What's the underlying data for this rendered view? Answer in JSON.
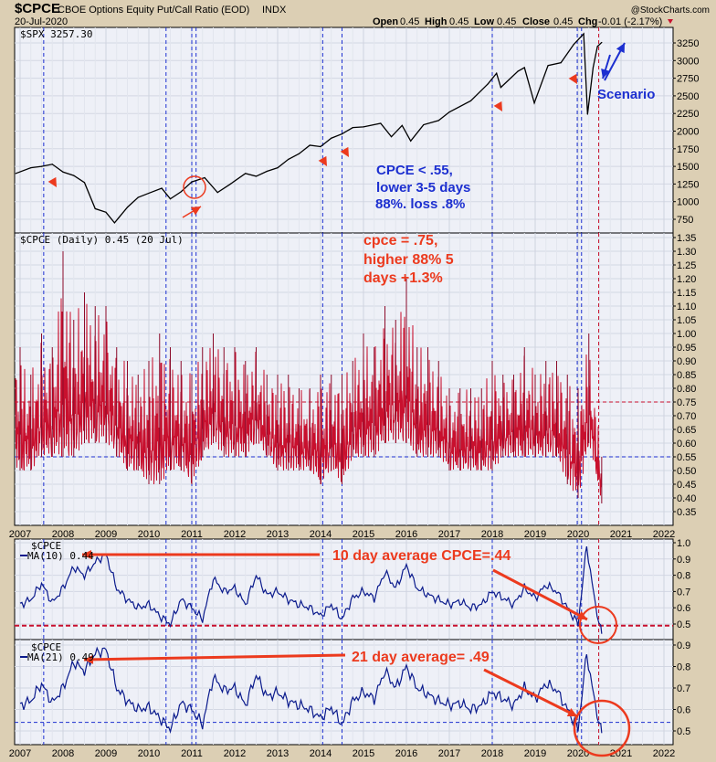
{
  "header": {
    "symbol": "$CPCE",
    "description": "CBOE Options Equity Put/Call Ratio (EOD)",
    "exchange": "INDX",
    "date": "20-Jul-2020",
    "watermark": "@StockCharts.com",
    "open_label": "Open",
    "open": "0.45",
    "high_label": "High",
    "high": "0.45",
    "low_label": "Low",
    "low": "0.45",
    "close_label": "Close",
    "close": "0.45",
    "chg_label": "Chg",
    "chg": "-0.01 (-2.17%)",
    "chg_direction": "down"
  },
  "colors": {
    "spx": "#000000",
    "cpce": "#c8102e",
    "ma": "#0a1a8c",
    "annotation_red": "#ec3a1e",
    "annotation_blue": "#1c2fd0",
    "panel_bg": "#eef0f7",
    "frame_bg": "#dccfb4"
  },
  "chart_data": [
    {
      "type": "line",
      "panel": "price",
      "legend": "$SPX 3257.30",
      "ylim": [
        750,
        3250
      ],
      "yticks": [
        750,
        1000,
        1250,
        1500,
        1750,
        2000,
        2250,
        2500,
        2750,
        3000,
        3250
      ],
      "grid": true,
      "x": [
        2006.9,
        2007.25,
        2007.5,
        2007.75,
        2008.0,
        2008.25,
        2008.5,
        2008.75,
        2009.0,
        2009.2,
        2009.5,
        2009.75,
        2010.0,
        2010.3,
        2010.5,
        2010.75,
        2011.0,
        2011.3,
        2011.6,
        2011.9,
        2012.25,
        2012.5,
        2012.75,
        2013.0,
        2013.25,
        2013.5,
        2013.75,
        2014.0,
        2014.25,
        2014.5,
        2014.75,
        2015.0,
        2015.4,
        2015.65,
        2015.9,
        2016.1,
        2016.4,
        2016.75,
        2017.0,
        2017.5,
        2017.9,
        2018.1,
        2018.2,
        2018.6,
        2018.75,
        2018.98,
        2019.3,
        2019.6,
        2019.9,
        2020.13,
        2020.22,
        2020.35,
        2020.45,
        2020.55
      ],
      "y": [
        1400,
        1480,
        1500,
        1530,
        1420,
        1370,
        1270,
        900,
        850,
        700,
        920,
        1060,
        1120,
        1190,
        1040,
        1140,
        1280,
        1340,
        1130,
        1250,
        1400,
        1360,
        1430,
        1480,
        1600,
        1680,
        1800,
        1780,
        1900,
        1960,
        2050,
        2060,
        2110,
        1920,
        2080,
        1860,
        2090,
        2150,
        2270,
        2430,
        2670,
        2820,
        2620,
        2850,
        2900,
        2400,
        2930,
        2970,
        3230,
        3380,
        2240,
        2900,
        3200,
        3257
      ]
    },
    {
      "type": "bar",
      "panel": "cpce",
      "legend": "$CPCE (Daily) 0.45 (20 Jul)",
      "ylim": [
        0.35,
        1.35
      ],
      "yticks": [
        0.35,
        0.4,
        0.45,
        0.5,
        0.55,
        0.6,
        0.65,
        0.7,
        0.75,
        0.8,
        0.85,
        0.9,
        0.95,
        1.0,
        1.05,
        1.1,
        1.15,
        1.2,
        1.25,
        1.3,
        1.35
      ],
      "reference_lines": [
        {
          "value": 0.75,
          "color": "#c8102e"
        },
        {
          "value": 0.55,
          "color": "#1c2fd0"
        }
      ],
      "x": [
        2007.0,
        2007.25,
        2007.5,
        2007.75,
        2008.0,
        2008.25,
        2008.5,
        2008.75,
        2009.0,
        2009.25,
        2009.5,
        2009.75,
        2010.0,
        2010.25,
        2010.5,
        2010.75,
        2011.0,
        2011.25,
        2011.5,
        2011.75,
        2012.0,
        2012.25,
        2012.5,
        2012.75,
        2013.0,
        2013.25,
        2013.5,
        2013.75,
        2014.0,
        2014.25,
        2014.5,
        2014.75,
        2015.0,
        2015.25,
        2015.5,
        2015.75,
        2016.0,
        2016.25,
        2016.5,
        2016.75,
        2017.0,
        2017.25,
        2017.5,
        2017.75,
        2018.0,
        2018.25,
        2018.5,
        2018.75,
        2019.0,
        2019.25,
        2019.5,
        2019.75,
        2020.0,
        2020.25,
        2020.55
      ],
      "high": [
        0.95,
        0.85,
        1.0,
        0.95,
        1.3,
        1.05,
        1.15,
        1.1,
        1.1,
        0.95,
        0.9,
        0.85,
        0.9,
        1.0,
        0.95,
        0.9,
        0.85,
        0.95,
        1.0,
        0.95,
        0.95,
        0.9,
        0.95,
        0.85,
        0.85,
        0.85,
        0.8,
        0.8,
        0.85,
        0.85,
        0.85,
        0.9,
        1.0,
        0.95,
        1.1,
        1.05,
        1.2,
        0.95,
        0.95,
        0.9,
        0.8,
        0.8,
        0.8,
        0.8,
        0.9,
        0.85,
        0.85,
        0.95,
        0.85,
        0.9,
        0.9,
        0.85,
        0.8,
        1.0,
        0.55
      ],
      "low": [
        0.5,
        0.5,
        0.55,
        0.55,
        0.55,
        0.55,
        0.6,
        0.6,
        0.6,
        0.55,
        0.5,
        0.5,
        0.45,
        0.45,
        0.5,
        0.5,
        0.45,
        0.55,
        0.6,
        0.55,
        0.55,
        0.55,
        0.6,
        0.55,
        0.5,
        0.5,
        0.5,
        0.5,
        0.45,
        0.5,
        0.45,
        0.55,
        0.55,
        0.55,
        0.6,
        0.6,
        0.6,
        0.55,
        0.55,
        0.55,
        0.5,
        0.5,
        0.5,
        0.5,
        0.5,
        0.55,
        0.55,
        0.55,
        0.55,
        0.55,
        0.55,
        0.45,
        0.4,
        0.6,
        0.38
      ]
    },
    {
      "type": "line",
      "panel": "ma10",
      "title": "$CPCE",
      "legend": "MA(10) 0.44",
      "ylim": [
        0.45,
        1.0
      ],
      "yticks": [
        0.5,
        0.6,
        0.7,
        0.8,
        0.9,
        1.0
      ],
      "reference_lines": [
        {
          "value": 0.49,
          "color": "#c8102e"
        }
      ],
      "x": [
        2007.0,
        2007.25,
        2007.5,
        2007.75,
        2008.0,
        2008.25,
        2008.5,
        2008.75,
        2009.0,
        2009.25,
        2009.5,
        2009.75,
        2010.0,
        2010.25,
        2010.5,
        2010.75,
        2011.0,
        2011.25,
        2011.5,
        2011.75,
        2012.0,
        2012.25,
        2012.5,
        2012.75,
        2013.0,
        2013.25,
        2013.5,
        2013.75,
        2014.0,
        2014.25,
        2014.5,
        2014.75,
        2015.0,
        2015.25,
        2015.5,
        2015.75,
        2016.0,
        2016.25,
        2016.5,
        2016.75,
        2017.0,
        2017.25,
        2017.5,
        2017.75,
        2018.0,
        2018.25,
        2018.5,
        2018.75,
        2019.0,
        2019.25,
        2019.5,
        2019.75,
        2020.0,
        2020.2,
        2020.4,
        2020.55
      ],
      "y": [
        0.62,
        0.65,
        0.75,
        0.63,
        0.72,
        0.85,
        0.8,
        0.88,
        0.93,
        0.72,
        0.65,
        0.6,
        0.62,
        0.55,
        0.5,
        0.65,
        0.6,
        0.53,
        0.78,
        0.7,
        0.72,
        0.62,
        0.8,
        0.68,
        0.7,
        0.65,
        0.62,
        0.6,
        0.55,
        0.62,
        0.53,
        0.66,
        0.7,
        0.66,
        0.82,
        0.72,
        0.86,
        0.72,
        0.68,
        0.65,
        0.62,
        0.64,
        0.6,
        0.62,
        0.7,
        0.66,
        0.62,
        0.72,
        0.66,
        0.74,
        0.7,
        0.6,
        0.5,
        0.98,
        0.62,
        0.44
      ]
    },
    {
      "type": "line",
      "panel": "ma21",
      "title": "$CPCE",
      "legend": "MA(21) 0.49",
      "ylim": [
        0.45,
        0.92
      ],
      "yticks": [
        0.5,
        0.6,
        0.7,
        0.8,
        0.9
      ],
      "reference_lines": [
        {
          "value": 0.54,
          "color": "#1c2fd0"
        }
      ],
      "x": [
        2007.0,
        2007.25,
        2007.5,
        2007.75,
        2008.0,
        2008.25,
        2008.5,
        2008.75,
        2009.0,
        2009.25,
        2009.5,
        2009.75,
        2010.0,
        2010.25,
        2010.5,
        2010.75,
        2011.0,
        2011.25,
        2011.5,
        2011.75,
        2012.0,
        2012.25,
        2012.5,
        2012.75,
        2013.0,
        2013.25,
        2013.5,
        2013.75,
        2014.0,
        2014.25,
        2014.5,
        2014.75,
        2015.0,
        2015.25,
        2015.5,
        2015.75,
        2016.0,
        2016.25,
        2016.5,
        2016.75,
        2017.0,
        2017.25,
        2017.5,
        2017.75,
        2018.0,
        2018.25,
        2018.5,
        2018.75,
        2019.0,
        2019.25,
        2019.5,
        2019.75,
        2020.0,
        2020.2,
        2020.4,
        2020.55
      ],
      "y": [
        0.62,
        0.64,
        0.72,
        0.63,
        0.7,
        0.82,
        0.78,
        0.86,
        0.88,
        0.7,
        0.64,
        0.6,
        0.61,
        0.56,
        0.51,
        0.63,
        0.6,
        0.53,
        0.75,
        0.69,
        0.7,
        0.62,
        0.76,
        0.66,
        0.68,
        0.64,
        0.62,
        0.6,
        0.56,
        0.61,
        0.53,
        0.64,
        0.68,
        0.65,
        0.78,
        0.7,
        0.8,
        0.7,
        0.67,
        0.64,
        0.62,
        0.63,
        0.6,
        0.62,
        0.68,
        0.65,
        0.62,
        0.7,
        0.65,
        0.72,
        0.69,
        0.6,
        0.51,
        0.86,
        0.62,
        0.49
      ]
    }
  ],
  "x_axis": {
    "years": [
      "2007",
      "2008",
      "2009",
      "2010",
      "2011",
      "2012",
      "2013",
      "2014",
      "2015",
      "2016",
      "2017",
      "2018",
      "2019",
      "2020",
      "2021",
      "2022"
    ]
  },
  "markers": {
    "blue_vlines": [
      2007.55,
      2010.4,
      2011.0,
      2011.1,
      2014.05,
      2014.5,
      2018.0,
      2019.98,
      2020.08
    ],
    "red_vline": 2020.48
  },
  "annotations": {
    "blue_note": [
      "CPCE < .55,",
      "lower 3-5 days",
      "88%. loss .8%"
    ],
    "red_note": [
      "cpce = .75,",
      "higher 88% 5",
      "days +1.3%"
    ],
    "scenario": "Scenario",
    "ma10_note": "10 day average CPCE=.44",
    "ma21_note": "21 day average= .49"
  }
}
